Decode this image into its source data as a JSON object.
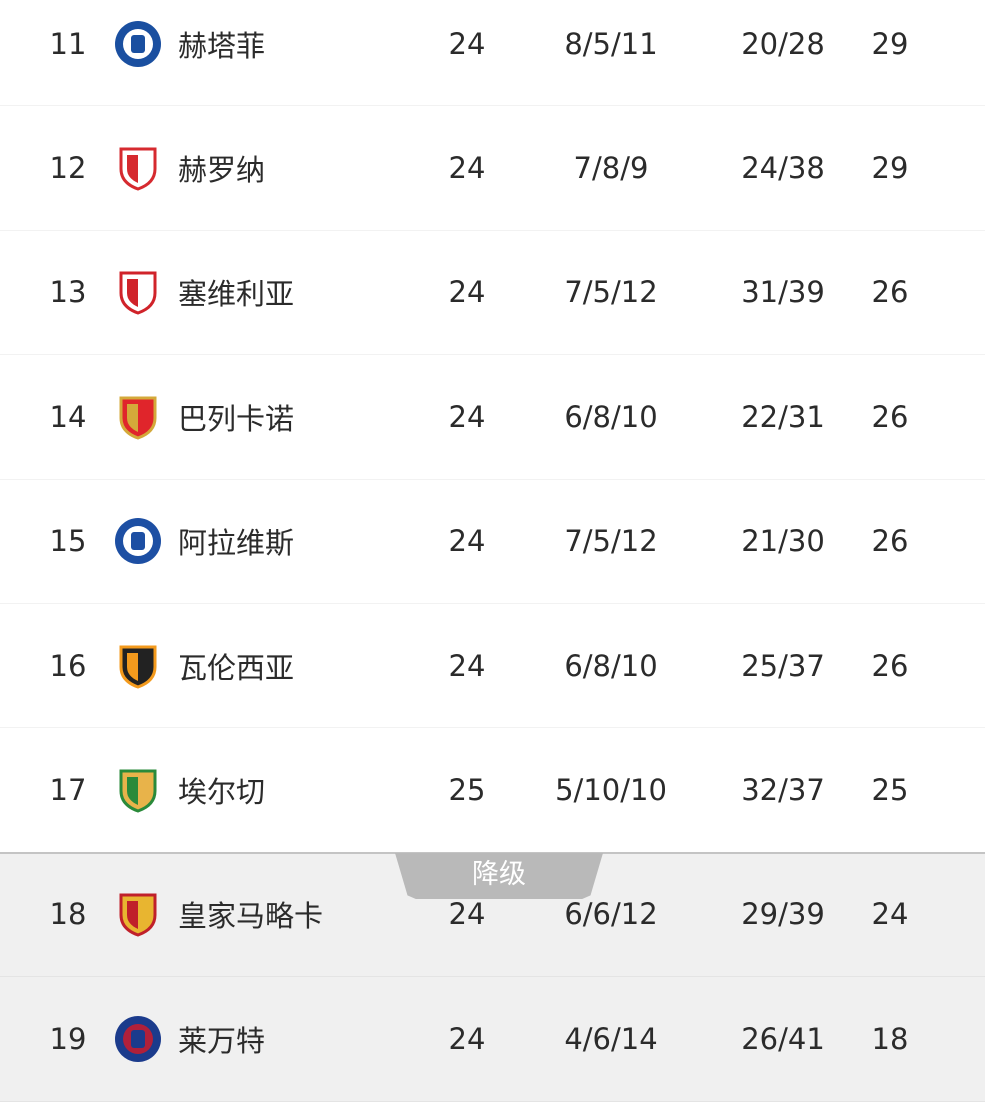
{
  "standings": [
    {
      "rank": "11",
      "team": "赫塔菲",
      "played": "24",
      "wdl": "8/5/11",
      "goals": "20/28",
      "points": "29",
      "logo": "getafe-crest",
      "colors": [
        "#1a4fa0",
        "#ffffff"
      ]
    },
    {
      "rank": "12",
      "team": "赫罗纳",
      "played": "24",
      "wdl": "7/8/9",
      "goals": "24/38",
      "points": "29",
      "logo": "girona-crest",
      "colors": [
        "#d62a2f",
        "#ffffff"
      ]
    },
    {
      "rank": "13",
      "team": "塞维利亚",
      "played": "24",
      "wdl": "7/5/12",
      "goals": "31/39",
      "points": "26",
      "logo": "sevilla-crest",
      "colors": [
        "#d0232a",
        "#ffffff"
      ]
    },
    {
      "rank": "14",
      "team": "巴列卡诺",
      "played": "24",
      "wdl": "6/8/10",
      "goals": "22/31",
      "points": "26",
      "logo": "rayo-crest",
      "colors": [
        "#d4a93a",
        "#e0252b"
      ]
    },
    {
      "rank": "15",
      "team": "阿拉维斯",
      "played": "24",
      "wdl": "7/5/12",
      "goals": "21/30",
      "points": "26",
      "logo": "alaves-crest",
      "colors": [
        "#1d4fa3",
        "#ffffff"
      ]
    },
    {
      "rank": "16",
      "team": "瓦伦西亚",
      "played": "24",
      "wdl": "6/8/10",
      "goals": "25/37",
      "points": "26",
      "logo": "valencia-crest",
      "colors": [
        "#f39a1d",
        "#222222"
      ]
    },
    {
      "rank": "17",
      "team": "埃尔切",
      "played": "25",
      "wdl": "5/10/10",
      "goals": "32/37",
      "points": "25",
      "logo": "elche-crest",
      "colors": [
        "#2a8a3a",
        "#e8b34a"
      ]
    },
    {
      "rank": "18",
      "team": "皇家马略卡",
      "played": "24",
      "wdl": "6/6/12",
      "goals": "29/39",
      "points": "24",
      "logo": "mallorca-crest",
      "colors": [
        "#c0202a",
        "#e8b530"
      ]
    },
    {
      "rank": "19",
      "team": "莱万特",
      "played": "24",
      "wdl": "4/6/14",
      "goals": "26/41",
      "points": "18",
      "logo": "levante-crest",
      "colors": [
        "#1b3b8c",
        "#b0203a"
      ]
    }
  ],
  "relegation_label": "降级",
  "relegation_bg": "#f0f0f0"
}
